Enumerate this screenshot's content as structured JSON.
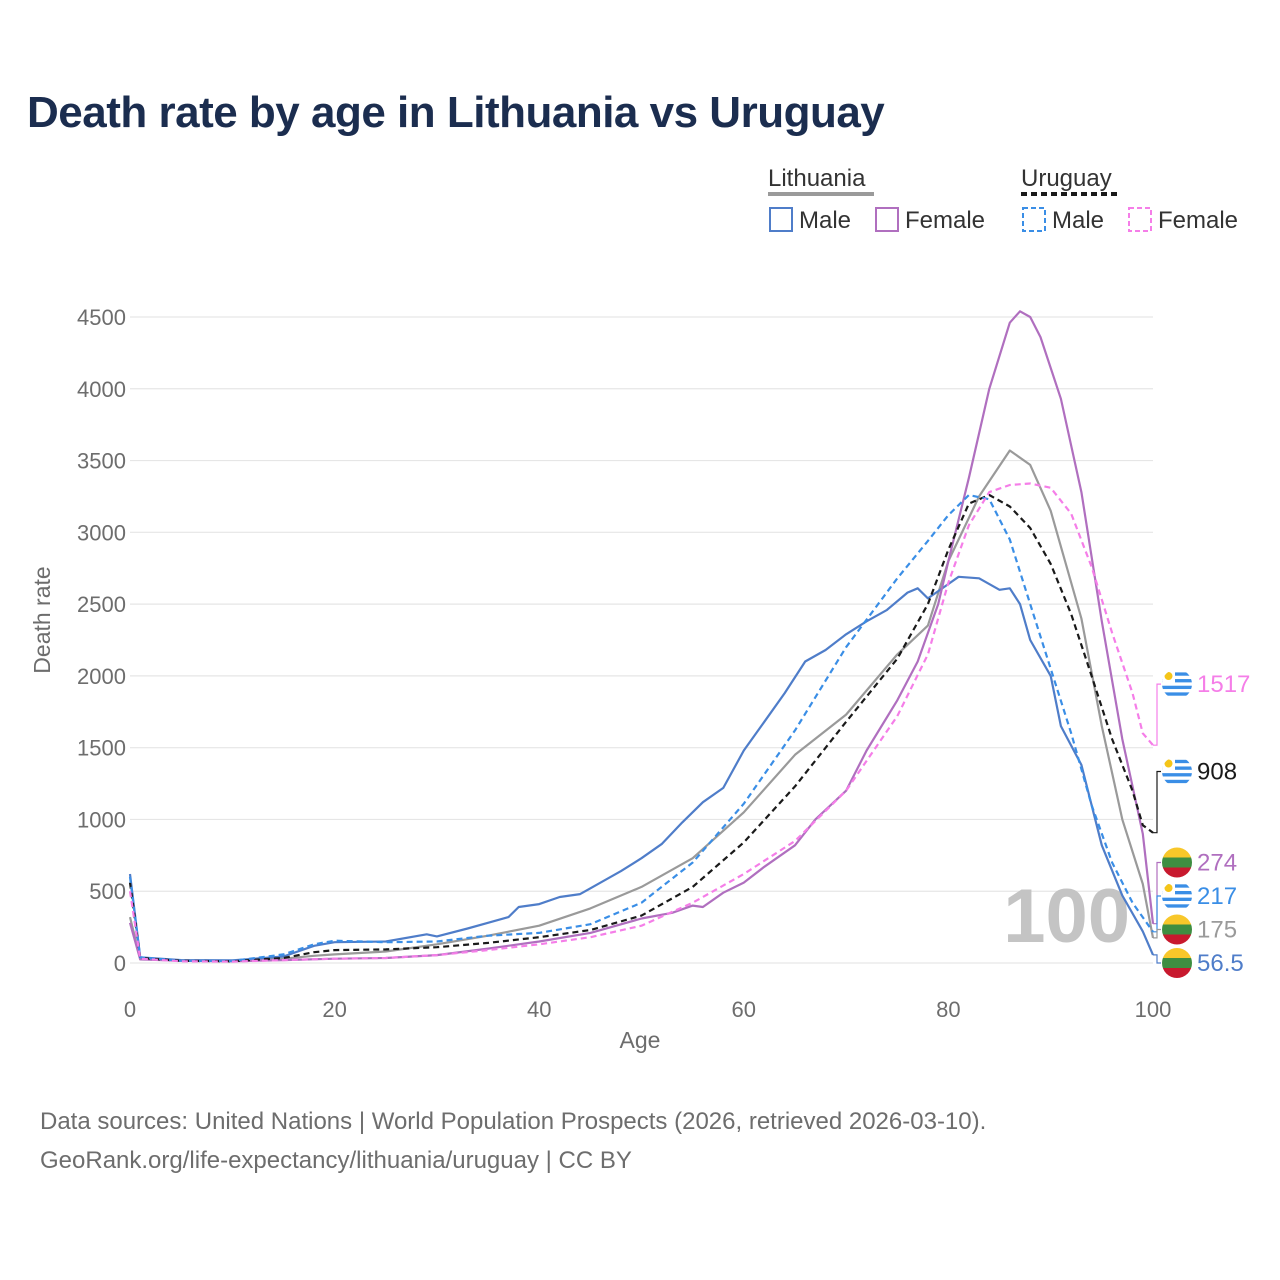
{
  "title": "Death rate by age in Lithuania vs Uruguay",
  "sources": {
    "line1": "Data sources: United Nations | World Population Prospects (2026, retrieved 2026-03-10).",
    "line2": "GeoRank.org/life-expectancy/lithuania/uruguay | CC BY"
  },
  "legend": {
    "group1": "Lithuania",
    "group2": "Uruguay",
    "male": "Male",
    "female": "Female"
  },
  "chart_data": {
    "type": "line",
    "xlabel": "Age",
    "ylabel": "Death rate",
    "xlim": [
      0,
      100
    ],
    "ylim": [
      0,
      4500
    ],
    "xticks": [
      0,
      20,
      40,
      60,
      80,
      100
    ],
    "yticks": [
      0,
      500,
      1000,
      1500,
      2000,
      2500,
      3000,
      3500,
      4000,
      4500
    ],
    "grid": true,
    "age_watermark": "100",
    "series": [
      {
        "key": "lt_total",
        "name": "Lithuania",
        "color": "#9a9a9a",
        "dashed": false,
        "end_label": "175",
        "flag": "lithuania",
        "points": [
          [
            0,
            320
          ],
          [
            1,
            30
          ],
          [
            5,
            18
          ],
          [
            10,
            15
          ],
          [
            15,
            30
          ],
          [
            18,
            50
          ],
          [
            20,
            60
          ],
          [
            25,
            80
          ],
          [
            30,
            130
          ],
          [
            35,
            190
          ],
          [
            40,
            260
          ],
          [
            45,
            380
          ],
          [
            50,
            530
          ],
          [
            55,
            730
          ],
          [
            60,
            1050
          ],
          [
            65,
            1450
          ],
          [
            70,
            1730
          ],
          [
            75,
            2150
          ],
          [
            78,
            2350
          ],
          [
            80,
            2800
          ],
          [
            83,
            3250
          ],
          [
            86,
            3570
          ],
          [
            88,
            3470
          ],
          [
            90,
            3150
          ],
          [
            93,
            2400
          ],
          [
            95,
            1650
          ],
          [
            97,
            1000
          ],
          [
            99,
            550
          ],
          [
            100,
            175
          ]
        ]
      },
      {
        "key": "lt_male",
        "name": "Lithuania Male",
        "color": "#4f7dc9",
        "dashed": false,
        "end_label": "56.5",
        "flag": "lithuania",
        "points": [
          [
            0,
            620
          ],
          [
            1,
            40
          ],
          [
            5,
            20
          ],
          [
            10,
            18
          ],
          [
            15,
            45
          ],
          [
            18,
            120
          ],
          [
            20,
            145
          ],
          [
            25,
            150
          ],
          [
            29,
            200
          ],
          [
            30,
            185
          ],
          [
            33,
            240
          ],
          [
            35,
            280
          ],
          [
            37,
            320
          ],
          [
            38,
            390
          ],
          [
            40,
            410
          ],
          [
            42,
            460
          ],
          [
            44,
            480
          ],
          [
            46,
            560
          ],
          [
            48,
            640
          ],
          [
            50,
            730
          ],
          [
            52,
            830
          ],
          [
            54,
            980
          ],
          [
            56,
            1120
          ],
          [
            58,
            1220
          ],
          [
            60,
            1480
          ],
          [
            62,
            1680
          ],
          [
            64,
            1880
          ],
          [
            66,
            2100
          ],
          [
            68,
            2180
          ],
          [
            70,
            2290
          ],
          [
            72,
            2380
          ],
          [
            74,
            2460
          ],
          [
            76,
            2580
          ],
          [
            77,
            2610
          ],
          [
            78,
            2540
          ],
          [
            80,
            2640
          ],
          [
            81,
            2690
          ],
          [
            83,
            2680
          ],
          [
            85,
            2600
          ],
          [
            86,
            2610
          ],
          [
            87,
            2500
          ],
          [
            88,
            2250
          ],
          [
            90,
            2000
          ],
          [
            91,
            1650
          ],
          [
            93,
            1380
          ],
          [
            95,
            820
          ],
          [
            97,
            470
          ],
          [
            99,
            220
          ],
          [
            100,
            56.5
          ]
        ]
      },
      {
        "key": "lt_female",
        "name": "Lithuania Female",
        "color": "#b06fbf",
        "dashed": false,
        "end_label": "274",
        "flag": "lithuania",
        "points": [
          [
            0,
            280
          ],
          [
            1,
            25
          ],
          [
            5,
            15
          ],
          [
            10,
            12
          ],
          [
            15,
            20
          ],
          [
            20,
            30
          ],
          [
            25,
            35
          ],
          [
            30,
            55
          ],
          [
            35,
            100
          ],
          [
            40,
            150
          ],
          [
            45,
            210
          ],
          [
            50,
            310
          ],
          [
            53,
            350
          ],
          [
            55,
            400
          ],
          [
            56,
            390
          ],
          [
            58,
            490
          ],
          [
            60,
            560
          ],
          [
            62,
            670
          ],
          [
            65,
            820
          ],
          [
            67,
            1000
          ],
          [
            70,
            1200
          ],
          [
            72,
            1480
          ],
          [
            75,
            1830
          ],
          [
            77,
            2100
          ],
          [
            79,
            2500
          ],
          [
            80,
            2800
          ],
          [
            82,
            3380
          ],
          [
            84,
            4000
          ],
          [
            86,
            4460
          ],
          [
            87,
            4540
          ],
          [
            88,
            4500
          ],
          [
            89,
            4360
          ],
          [
            91,
            3930
          ],
          [
            93,
            3280
          ],
          [
            95,
            2380
          ],
          [
            97,
            1560
          ],
          [
            99,
            900
          ],
          [
            100,
            274
          ]
        ]
      },
      {
        "key": "uy_total",
        "name": "Uruguay",
        "color": "#1a1a1a",
        "dashed": true,
        "end_label": "908",
        "flag": "uruguay",
        "points": [
          [
            0,
            560
          ],
          [
            1,
            35
          ],
          [
            5,
            15
          ],
          [
            10,
            12
          ],
          [
            15,
            35
          ],
          [
            18,
            75
          ],
          [
            20,
            90
          ],
          [
            25,
            95
          ],
          [
            30,
            110
          ],
          [
            35,
            140
          ],
          [
            40,
            180
          ],
          [
            45,
            230
          ],
          [
            50,
            330
          ],
          [
            55,
            530
          ],
          [
            60,
            840
          ],
          [
            65,
            1230
          ],
          [
            70,
            1680
          ],
          [
            75,
            2120
          ],
          [
            78,
            2500
          ],
          [
            80,
            2880
          ],
          [
            82,
            3200
          ],
          [
            84,
            3260
          ],
          [
            86,
            3180
          ],
          [
            88,
            3030
          ],
          [
            90,
            2780
          ],
          [
            92,
            2430
          ],
          [
            94,
            2000
          ],
          [
            96,
            1560
          ],
          [
            98,
            1200
          ],
          [
            99,
            960
          ],
          [
            100,
            908
          ]
        ]
      },
      {
        "key": "uy_male",
        "name": "Uruguay Male",
        "color": "#3a8ee6",
        "dashed": true,
        "end_label": "217",
        "flag": "uruguay",
        "points": [
          [
            0,
            600
          ],
          [
            1,
            40
          ],
          [
            5,
            15
          ],
          [
            10,
            14
          ],
          [
            15,
            60
          ],
          [
            18,
            130
          ],
          [
            20,
            155
          ],
          [
            25,
            145
          ],
          [
            30,
            150
          ],
          [
            35,
            190
          ],
          [
            40,
            210
          ],
          [
            45,
            270
          ],
          [
            50,
            420
          ],
          [
            55,
            700
          ],
          [
            60,
            1110
          ],
          [
            65,
            1620
          ],
          [
            70,
            2200
          ],
          [
            75,
            2680
          ],
          [
            78,
            2940
          ],
          [
            80,
            3120
          ],
          [
            82,
            3260
          ],
          [
            84,
            3230
          ],
          [
            86,
            2950
          ],
          [
            88,
            2500
          ],
          [
            90,
            2050
          ],
          [
            92,
            1600
          ],
          [
            94,
            1100
          ],
          [
            96,
            700
          ],
          [
            98,
            420
          ],
          [
            100,
            217
          ]
        ]
      },
      {
        "key": "uy_female",
        "name": "Uruguay Female",
        "color": "#f57ee8",
        "dashed": true,
        "end_label": "1517",
        "flag": "uruguay",
        "points": [
          [
            0,
            500
          ],
          [
            1,
            30
          ],
          [
            5,
            12
          ],
          [
            10,
            10
          ],
          [
            15,
            20
          ],
          [
            20,
            30
          ],
          [
            25,
            35
          ],
          [
            30,
            55
          ],
          [
            35,
            90
          ],
          [
            40,
            130
          ],
          [
            45,
            180
          ],
          [
            50,
            260
          ],
          [
            55,
            420
          ],
          [
            60,
            620
          ],
          [
            65,
            850
          ],
          [
            70,
            1200
          ],
          [
            75,
            1720
          ],
          [
            78,
            2150
          ],
          [
            80,
            2650
          ],
          [
            82,
            3050
          ],
          [
            84,
            3280
          ],
          [
            86,
            3330
          ],
          [
            88,
            3340
          ],
          [
            90,
            3310
          ],
          [
            92,
            3130
          ],
          [
            94,
            2760
          ],
          [
            96,
            2300
          ],
          [
            98,
            1880
          ],
          [
            99,
            1600
          ],
          [
            100,
            1517
          ]
        ]
      }
    ]
  }
}
